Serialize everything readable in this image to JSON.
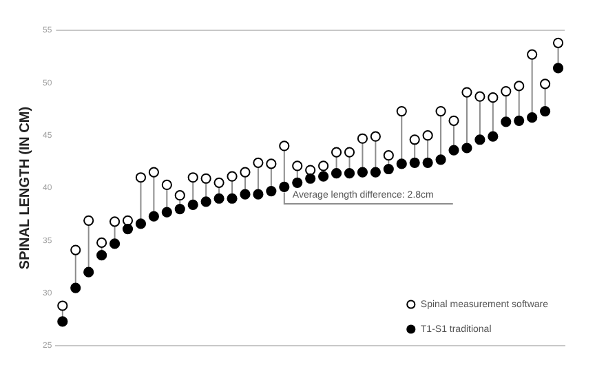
{
  "chart_data": {
    "type": "scatter",
    "ylabel": "SPINAL LENGTH (IN CM)",
    "categories": [
      null,
      null,
      null,
      null,
      null,
      null,
      null,
      null,
      null,
      null,
      null,
      null,
      null,
      null,
      null,
      null,
      null,
      null,
      null,
      null,
      null,
      null,
      null,
      null,
      null,
      null,
      null,
      null,
      null,
      null,
      null,
      null,
      null,
      null,
      null,
      null,
      null,
      null,
      null
    ],
    "series": [
      {
        "name": "Spinal measurement software",
        "color": "#ffffff",
        "values": [
          28.8,
          34.1,
          36.9,
          34.8,
          36.8,
          36.9,
          41.0,
          41.5,
          40.3,
          39.3,
          41.0,
          40.9,
          40.5,
          41.1,
          41.5,
          42.4,
          42.3,
          44.0,
          42.1,
          41.7,
          42.1,
          43.4,
          43.4,
          44.7,
          44.9,
          43.1,
          47.3,
          44.6,
          45.0,
          47.3,
          46.4,
          49.1,
          48.7,
          48.6,
          49.2,
          49.7,
          52.7,
          49.9,
          53.8
        ]
      },
      {
        "name": "T1-S1 traditional",
        "color": "#000000",
        "values": [
          27.3,
          30.5,
          32.0,
          33.6,
          34.7,
          36.1,
          36.6,
          37.3,
          37.7,
          38.0,
          38.4,
          38.7,
          39.0,
          39.0,
          39.4,
          39.4,
          39.7,
          40.1,
          40.5,
          40.9,
          41.1,
          41.4,
          41.4,
          41.5,
          41.5,
          41.8,
          42.3,
          42.4,
          42.4,
          42.7,
          43.6,
          43.8,
          44.6,
          44.9,
          46.3,
          46.4,
          46.7,
          47.3,
          51.4
        ]
      }
    ],
    "ylim": [
      25,
      55
    ],
    "yticks": [
      25,
      30,
      35,
      40,
      45,
      50,
      55
    ],
    "grid": false,
    "marker": "circle",
    "legend": "bottom right",
    "annotations": [
      "Average length difference: 2.8cm"
    ]
  }
}
